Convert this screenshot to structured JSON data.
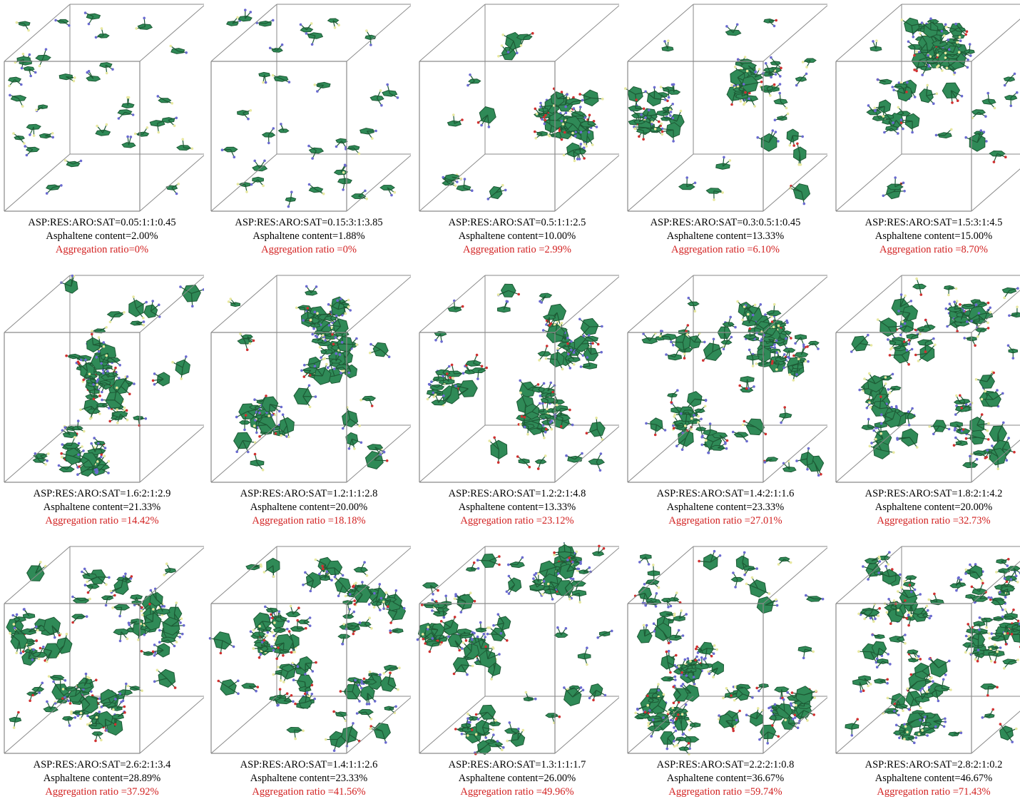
{
  "colors": {
    "caption_text": "#000000",
    "aggregation_text": "#d22020",
    "box_edge": "#8a8a8a",
    "molecule_fill": "#2f8a57",
    "molecule_stroke": "#1d5a35",
    "atom_n": "#6a6ad0",
    "atom_o": "#d03030",
    "atom_h": "#e8e8a0"
  },
  "panels": [
    {
      "ratio": "ASP:RES:ARO:SAT=0.05:1:1:0.45",
      "content": "Asphaltene content=2.00%",
      "aggregation": "Aggregation ratio=0%",
      "molecules": 32,
      "clusters": 0
    },
    {
      "ratio": "ASP:RES:ARO:SAT=0.15:3:1:3.85",
      "content": "Asphaltene content=1.88%",
      "aggregation": "Aggregation ratio =0%",
      "molecules": 30,
      "clusters": 0
    },
    {
      "ratio": "ASP:RES:ARO:SAT=0.5:1:1:2.5",
      "content": "Asphaltene content=10.00%",
      "aggregation": "Aggregation ratio =2.99%",
      "molecules": 55,
      "clusters": 2
    },
    {
      "ratio": "ASP:RES:ARO:SAT=0.3:0.5:1:0.45",
      "content": "Asphaltene content=13.33%",
      "aggregation": "Aggregation ratio =6.10%",
      "molecules": 60,
      "clusters": 2
    },
    {
      "ratio": "ASP:RES:ARO:SAT=1.5:3:1:4.5",
      "content": "Asphaltene content=15.00%",
      "aggregation": "Aggregation ratio =8.70%",
      "molecules": 70,
      "clusters": 3
    },
    {
      "ratio": "ASP:RES:ARO:SAT=1.6:2:1:2.9",
      "content": "Asphaltene content=21.33%",
      "aggregation": "Aggregation ratio =14.42%",
      "molecules": 70,
      "clusters": 3
    },
    {
      "ratio": "ASP:RES:ARO:SAT=1.2:1:1:2.8",
      "content": "Asphaltene content=20.00%",
      "aggregation": "Aggregation ratio =18.18%",
      "molecules": 72,
      "clusters": 3
    },
    {
      "ratio": "ASP:RES:ARO:SAT=1.2:2:1:4.8",
      "content": "Asphaltene content=13.33%",
      "aggregation": "Aggregation ratio =23.12%",
      "molecules": 70,
      "clusters": 3
    },
    {
      "ratio": "ASP:RES:ARO:SAT=1.4:2:1:1.6",
      "content": "Asphaltene content=23.33%",
      "aggregation": "Aggregation ratio =27.01%",
      "molecules": 75,
      "clusters": 4
    },
    {
      "ratio": "ASP:RES:ARO:SAT=1.8:2:1:4.2",
      "content": "Asphaltene content=20.00%",
      "aggregation": "Aggregation ratio =32.73%",
      "molecules": 78,
      "clusters": 4
    },
    {
      "ratio": "ASP:RES:ARO:SAT=2.6:2:1:3.4",
      "content": "Asphaltene content=28.89%",
      "aggregation": "Aggregation ratio =37.92%",
      "molecules": 85,
      "clusters": 5
    },
    {
      "ratio": "ASP:RES:ARO:SAT=1.4:1:1:2.6",
      "content": "Asphaltene content=23.33%",
      "aggregation": "Aggregation ratio =41.56%",
      "molecules": 85,
      "clusters": 5
    },
    {
      "ratio": "ASP:RES:ARO:SAT=1.3:1:1:1.7",
      "content": "Asphaltene content=26.00%",
      "aggregation": "Aggregation ratio =49.96%",
      "molecules": 88,
      "clusters": 5
    },
    {
      "ratio": "ASP:RES:ARO:SAT=2.2:2:1:0.8",
      "content": "Asphaltene content=36.67%",
      "aggregation": "Aggregation ratio =59.74%",
      "molecules": 95,
      "clusters": 6
    },
    {
      "ratio": "ASP:RES:ARO:SAT=2.8:2:1:0.2",
      "content": "Asphaltene content=46.67%",
      "aggregation": "Aggregation ratio =71.43%",
      "molecules": 105,
      "clusters": 6
    }
  ]
}
